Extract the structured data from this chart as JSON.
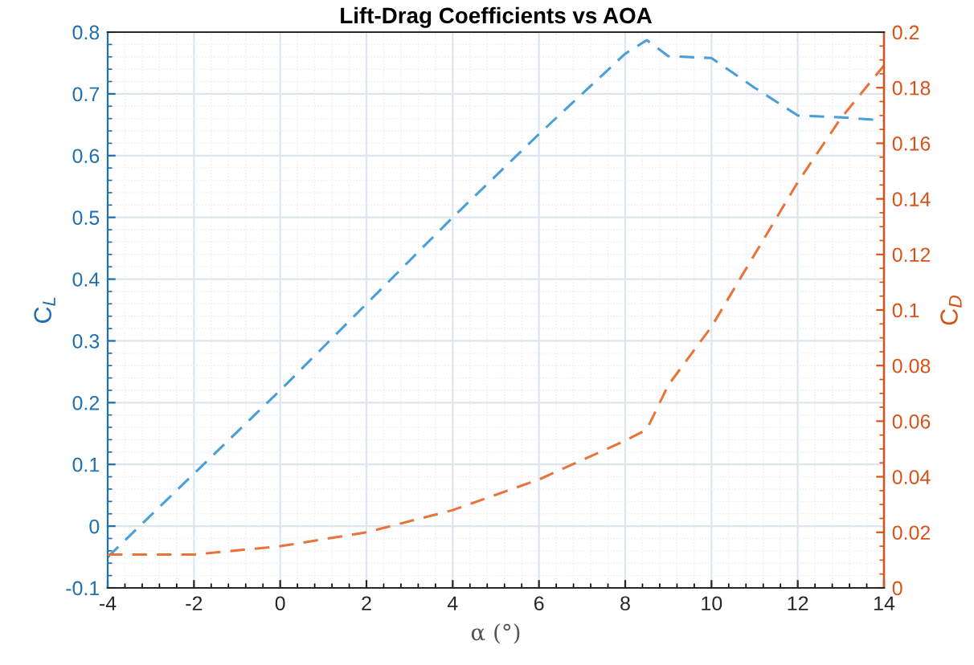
{
  "chart_data": {
    "type": "line",
    "title": "Lift-Drag Coefficients vs AOA",
    "xlabel": "α (°)",
    "ylabel": "C$_{L}$",
    "y2label": "C$_{D}$",
    "series": [
      {
        "color": "#4a9fd8",
        "x": [
          -4,
          -2,
          0,
          2,
          4,
          6,
          8,
          8.5,
          9,
          10,
          11,
          12,
          13,
          14
        ],
        "values": [
          -0.05,
          0.085,
          0.22,
          0.36,
          0.5,
          0.635,
          0.765,
          0.787,
          0.761,
          0.758,
          0.71,
          0.665,
          0.662,
          0.657
        ]
      },
      {
        "color": "#e8743b",
        "axis": "y2",
        "x": [
          -4,
          -2,
          0,
          2,
          4,
          6,
          8,
          8.5,
          9,
          10,
          11,
          12,
          13,
          14
        ],
        "values": [
          0.012,
          0.012,
          0.015,
          0.02,
          0.028,
          0.039,
          0.053,
          0.057,
          0.073,
          0.094,
          0.12,
          0.146,
          0.169,
          0.188
        ]
      }
    ],
    "xlim": [
      -4,
      14
    ],
    "xticks": [
      -4,
      -2,
      0,
      2,
      4,
      6,
      8,
      10,
      12,
      14
    ],
    "ylim": [
      -0.1,
      0.8
    ],
    "yticks": [
      -0.1,
      0,
      0.1,
      0.2,
      0.3,
      0.4,
      0.5,
      0.6,
      0.7,
      0.8
    ],
    "y2lim": [
      0,
      0.2
    ],
    "y2ticks": [
      0,
      0.02,
      0.04,
      0.06,
      0.08,
      0.1,
      0.12,
      0.14,
      0.16,
      0.18,
      0.2
    ],
    "grid": true,
    "line_style": "dashed",
    "marker": "none"
  }
}
